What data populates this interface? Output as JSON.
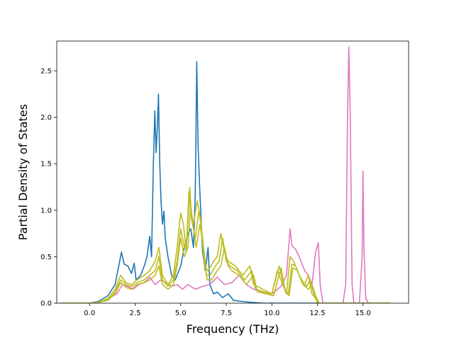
{
  "chart_data": {
    "type": "line",
    "title": "",
    "xlabel": "Frequency (THz)",
    "ylabel": "Partial Density of States",
    "xlim": [
      -1.8,
      17.5
    ],
    "ylim": [
      0,
      2.82
    ],
    "x_ticks": [
      0.0,
      2.5,
      5.0,
      7.5,
      10.0,
      12.5,
      15.0
    ],
    "x_tick_labels": [
      "0.0",
      "2.5",
      "5.0",
      "7.5",
      "10.0",
      "12.5",
      "15.0"
    ],
    "y_ticks": [
      0.0,
      0.5,
      1.0,
      1.5,
      2.0,
      2.5
    ],
    "y_tick_labels": [
      "0.0",
      "0.5",
      "1.0",
      "1.5",
      "2.0",
      "2.5"
    ],
    "grid": false,
    "legend": false,
    "series": [
      {
        "color": "#1f77b4",
        "points": [
          [
            -1.6,
            0
          ],
          [
            0,
            0
          ],
          [
            0.5,
            0.02
          ],
          [
            1.0,
            0.08
          ],
          [
            1.4,
            0.2
          ],
          [
            1.6,
            0.4
          ],
          [
            1.75,
            0.55
          ],
          [
            1.9,
            0.42
          ],
          [
            2.1,
            0.4
          ],
          [
            2.3,
            0.32
          ],
          [
            2.45,
            0.43
          ],
          [
            2.55,
            0.25
          ],
          [
            2.8,
            0.3
          ],
          [
            3.0,
            0.4
          ],
          [
            3.15,
            0.5
          ],
          [
            3.3,
            0.72
          ],
          [
            3.4,
            0.5
          ],
          [
            3.5,
            1.5
          ],
          [
            3.58,
            2.07
          ],
          [
            3.65,
            1.62
          ],
          [
            3.72,
            1.9
          ],
          [
            3.78,
            2.25
          ],
          [
            3.85,
            1.5
          ],
          [
            3.92,
            1.1
          ],
          [
            4.0,
            0.85
          ],
          [
            4.08,
            0.99
          ],
          [
            4.15,
            0.7
          ],
          [
            4.3,
            0.5
          ],
          [
            4.5,
            0.3
          ],
          [
            4.7,
            0.25
          ],
          [
            5.0,
            0.4
          ],
          [
            5.2,
            0.6
          ],
          [
            5.4,
            0.75
          ],
          [
            5.55,
            0.8
          ],
          [
            5.7,
            0.6
          ],
          [
            5.8,
            1.2
          ],
          [
            5.88,
            2.6
          ],
          [
            5.95,
            1.7
          ],
          [
            6.05,
            1.2
          ],
          [
            6.2,
            0.55
          ],
          [
            6.35,
            0.35
          ],
          [
            6.5,
            0.6
          ],
          [
            6.6,
            0.2
          ],
          [
            6.8,
            0.1
          ],
          [
            7.0,
            0.12
          ],
          [
            7.3,
            0.06
          ],
          [
            7.6,
            0.1
          ],
          [
            7.9,
            0.03
          ],
          [
            8.3,
            0.02
          ],
          [
            8.8,
            0.01
          ],
          [
            9.5,
            0
          ],
          [
            16.5,
            0
          ]
        ]
      },
      {
        "color": "#e377c2",
        "points": [
          [
            -1.6,
            0
          ],
          [
            0,
            0
          ],
          [
            0.5,
            0.01
          ],
          [
            1.0,
            0.05
          ],
          [
            1.5,
            0.1
          ],
          [
            1.8,
            0.2
          ],
          [
            2.1,
            0.18
          ],
          [
            2.4,
            0.15
          ],
          [
            2.7,
            0.2
          ],
          [
            3.0,
            0.22
          ],
          [
            3.3,
            0.28
          ],
          [
            3.6,
            0.2
          ],
          [
            3.9,
            0.25
          ],
          [
            4.2,
            0.22
          ],
          [
            4.5,
            0.18
          ],
          [
            4.8,
            0.2
          ],
          [
            5.1,
            0.15
          ],
          [
            5.4,
            0.2
          ],
          [
            5.8,
            0.15
          ],
          [
            6.2,
            0.18
          ],
          [
            6.6,
            0.2
          ],
          [
            7.0,
            0.28
          ],
          [
            7.4,
            0.2
          ],
          [
            7.8,
            0.22
          ],
          [
            8.2,
            0.3
          ],
          [
            8.6,
            0.2
          ],
          [
            9.0,
            0.15
          ],
          [
            9.5,
            0.12
          ],
          [
            10.0,
            0.1
          ],
          [
            10.5,
            0.18
          ],
          [
            10.8,
            0.3
          ],
          [
            11.0,
            0.8
          ],
          [
            11.1,
            0.62
          ],
          [
            11.3,
            0.58
          ],
          [
            11.5,
            0.5
          ],
          [
            11.8,
            0.35
          ],
          [
            12.0,
            0.3
          ],
          [
            12.2,
            0.2
          ],
          [
            12.4,
            0.55
          ],
          [
            12.55,
            0.65
          ],
          [
            12.65,
            0.2
          ],
          [
            12.8,
            0
          ],
          [
            13.9,
            0
          ],
          [
            14.05,
            0.2
          ],
          [
            14.15,
            2.0
          ],
          [
            14.22,
            2.76
          ],
          [
            14.3,
            2.0
          ],
          [
            14.4,
            0.2
          ],
          [
            14.5,
            0
          ],
          [
            14.8,
            0
          ],
          [
            14.95,
            0.5
          ],
          [
            15.0,
            1.42
          ],
          [
            15.05,
            0.6
          ],
          [
            15.15,
            0.05
          ],
          [
            15.3,
            0
          ],
          [
            16.5,
            0
          ]
        ]
      },
      {
        "color": "#bcbd22",
        "points": [
          [
            -1.6,
            0
          ],
          [
            0,
            0
          ],
          [
            0.5,
            0.01
          ],
          [
            1.0,
            0.05
          ],
          [
            1.4,
            0.15
          ],
          [
            1.7,
            0.3
          ],
          [
            2.0,
            0.22
          ],
          [
            2.3,
            0.2
          ],
          [
            2.6,
            0.25
          ],
          [
            3.0,
            0.3
          ],
          [
            3.3,
            0.35
          ],
          [
            3.6,
            0.45
          ],
          [
            3.8,
            0.6
          ],
          [
            4.0,
            0.3
          ],
          [
            4.3,
            0.2
          ],
          [
            4.6,
            0.3
          ],
          [
            4.8,
            0.6
          ],
          [
            5.0,
            0.97
          ],
          [
            5.15,
            0.85
          ],
          [
            5.3,
            0.55
          ],
          [
            5.45,
            1.2
          ],
          [
            5.55,
            1.0
          ],
          [
            5.7,
            0.85
          ],
          [
            5.9,
            1.1
          ],
          [
            6.1,
            0.9
          ],
          [
            6.3,
            0.4
          ],
          [
            6.5,
            0.35
          ],
          [
            6.8,
            0.45
          ],
          [
            7.0,
            0.5
          ],
          [
            7.2,
            0.75
          ],
          [
            7.4,
            0.55
          ],
          [
            7.6,
            0.45
          ],
          [
            8.0,
            0.4
          ],
          [
            8.4,
            0.3
          ],
          [
            8.8,
            0.4
          ],
          [
            9.0,
            0.2
          ],
          [
            9.5,
            0.15
          ],
          [
            10.0,
            0.1
          ],
          [
            10.3,
            0.35
          ],
          [
            10.6,
            0.2
          ],
          [
            10.8,
            0.1
          ],
          [
            11.0,
            0.5
          ],
          [
            11.2,
            0.45
          ],
          [
            11.5,
            0.3
          ],
          [
            11.8,
            0.2
          ],
          [
            12.0,
            0.3
          ],
          [
            12.2,
            0.1
          ],
          [
            12.4,
            0.05
          ],
          [
            12.6,
            0
          ],
          [
            16.5,
            0
          ]
        ]
      },
      {
        "color": "#bcbd22",
        "points": [
          [
            -1.6,
            0
          ],
          [
            0,
            0
          ],
          [
            0.5,
            0.01
          ],
          [
            1.0,
            0.04
          ],
          [
            1.4,
            0.12
          ],
          [
            1.7,
            0.25
          ],
          [
            2.0,
            0.2
          ],
          [
            2.3,
            0.18
          ],
          [
            2.6,
            0.22
          ],
          [
            3.0,
            0.25
          ],
          [
            3.3,
            0.3
          ],
          [
            3.6,
            0.35
          ],
          [
            3.8,
            0.5
          ],
          [
            4.0,
            0.25
          ],
          [
            4.3,
            0.18
          ],
          [
            4.6,
            0.25
          ],
          [
            4.8,
            0.45
          ],
          [
            5.0,
            0.8
          ],
          [
            5.2,
            0.6
          ],
          [
            5.35,
            0.7
          ],
          [
            5.5,
            1.25
          ],
          [
            5.6,
            0.9
          ],
          [
            5.8,
            0.7
          ],
          [
            6.0,
            1.0
          ],
          [
            6.2,
            0.7
          ],
          [
            6.4,
            0.3
          ],
          [
            6.6,
            0.3
          ],
          [
            6.9,
            0.4
          ],
          [
            7.1,
            0.45
          ],
          [
            7.3,
            0.7
          ],
          [
            7.5,
            0.45
          ],
          [
            7.7,
            0.4
          ],
          [
            8.1,
            0.35
          ],
          [
            8.5,
            0.25
          ],
          [
            8.9,
            0.35
          ],
          [
            9.1,
            0.15
          ],
          [
            9.6,
            0.12
          ],
          [
            10.0,
            0.1
          ],
          [
            10.4,
            0.4
          ],
          [
            10.7,
            0.15
          ],
          [
            10.9,
            0.1
          ],
          [
            11.1,
            0.42
          ],
          [
            11.3,
            0.4
          ],
          [
            11.6,
            0.25
          ],
          [
            11.9,
            0.18
          ],
          [
            12.1,
            0.25
          ],
          [
            12.3,
            0.1
          ],
          [
            12.5,
            0
          ],
          [
            16.5,
            0
          ]
        ]
      },
      {
        "color": "#bcbd22",
        "points": [
          [
            -1.6,
            0
          ],
          [
            0,
            0
          ],
          [
            0.5,
            0.01
          ],
          [
            1.0,
            0.03
          ],
          [
            1.4,
            0.1
          ],
          [
            1.7,
            0.22
          ],
          [
            2.0,
            0.17
          ],
          [
            2.3,
            0.15
          ],
          [
            2.6,
            0.2
          ],
          [
            3.0,
            0.22
          ],
          [
            3.3,
            0.25
          ],
          [
            3.6,
            0.3
          ],
          [
            3.8,
            0.4
          ],
          [
            4.0,
            0.2
          ],
          [
            4.3,
            0.15
          ],
          [
            4.6,
            0.2
          ],
          [
            4.8,
            0.4
          ],
          [
            5.0,
            0.7
          ],
          [
            5.2,
            0.5
          ],
          [
            5.4,
            0.6
          ],
          [
            5.55,
            1.05
          ],
          [
            5.7,
            0.8
          ],
          [
            5.85,
            0.6
          ],
          [
            6.05,
            0.85
          ],
          [
            6.25,
            0.6
          ],
          [
            6.45,
            0.25
          ],
          [
            6.7,
            0.25
          ],
          [
            7.0,
            0.35
          ],
          [
            7.2,
            0.4
          ],
          [
            7.4,
            0.6
          ],
          [
            7.6,
            0.4
          ],
          [
            7.8,
            0.35
          ],
          [
            8.2,
            0.3
          ],
          [
            8.6,
            0.2
          ],
          [
            9.0,
            0.3
          ],
          [
            9.2,
            0.12
          ],
          [
            9.7,
            0.1
          ],
          [
            10.1,
            0.08
          ],
          [
            10.5,
            0.38
          ],
          [
            10.75,
            0.12
          ],
          [
            10.95,
            0.08
          ],
          [
            11.15,
            0.38
          ],
          [
            11.4,
            0.35
          ],
          [
            11.7,
            0.2
          ],
          [
            12.0,
            0.15
          ],
          [
            12.2,
            0.2
          ],
          [
            12.4,
            0.08
          ],
          [
            12.6,
            0
          ],
          [
            16.5,
            0
          ]
        ]
      }
    ]
  }
}
